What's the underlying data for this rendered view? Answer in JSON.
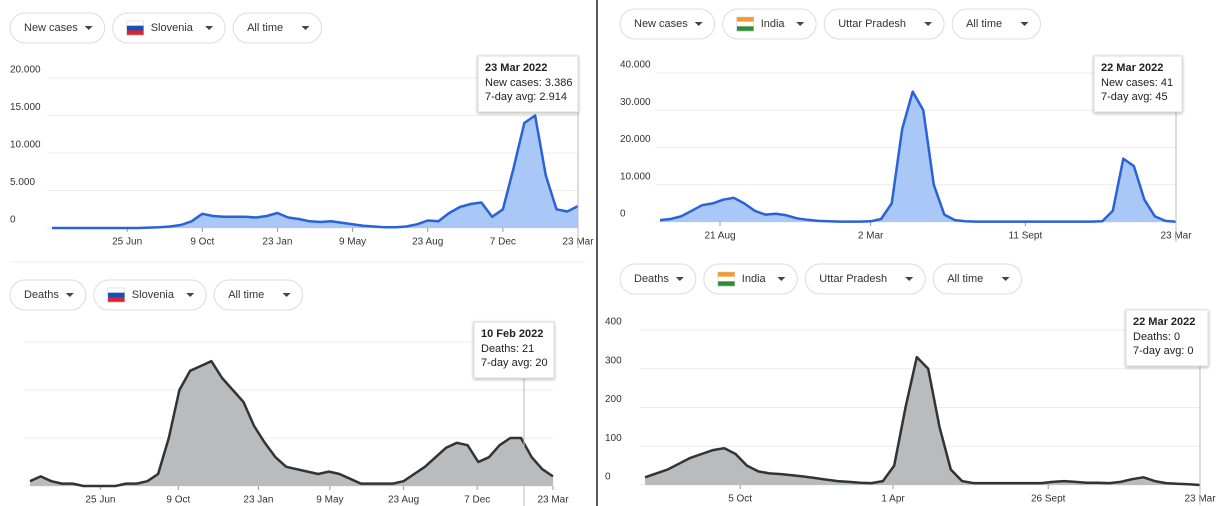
{
  "chart_data": [
    {
      "type": "area",
      "controls": [
        "New cases",
        "Slovenia",
        "All time"
      ],
      "tooltip": {
        "title": "23 Mar 2022",
        "lines": [
          "New cases: 3.386",
          "7-day avg: 2.914"
        ]
      },
      "color": "#2a62d8",
      "fill": "#a9c7f7",
      "xlim": [
        0,
        49
      ],
      "xticks": [
        {
          "value": 7,
          "label": "25 Jun"
        },
        {
          "value": 14,
          "label": "9 Oct"
        },
        {
          "value": 21,
          "label": "23 Jan"
        },
        {
          "value": 28,
          "label": "9 May"
        },
        {
          "value": 35,
          "label": "23 Aug"
        },
        {
          "value": 42,
          "label": "7 Dec"
        },
        {
          "value": 49,
          "label": "23 Mar"
        }
      ],
      "ylim": [
        0,
        20000
      ],
      "yticks": [
        0,
        {
          "value": 5000,
          "label": "5.000"
        },
        {
          "value": 10000,
          "label": "10.000"
        },
        {
          "value": 15000,
          "label": "15.000"
        },
        {
          "value": 20000,
          "label": "20.000"
        }
      ],
      "values": [
        0,
        0,
        0,
        0,
        0,
        0,
        0,
        0,
        0,
        50,
        100,
        200,
        400,
        900,
        1900,
        1600,
        1500,
        1500,
        1500,
        1400,
        1600,
        2000,
        1400,
        1200,
        900,
        800,
        900,
        700,
        500,
        300,
        200,
        100,
        100,
        200,
        500,
        1000,
        900,
        2000,
        2800,
        3200,
        3400,
        1500,
        2500,
        8000,
        14000,
        15000,
        7000,
        2500,
        2200,
        2914
      ]
    },
    {
      "type": "area",
      "controls": [
        "New cases",
        "India",
        "Uttar Pradesh",
        "All time"
      ],
      "tooltip": {
        "title": "22 Mar 2022",
        "lines": [
          "New cases: 41",
          "7-day avg: 45"
        ]
      },
      "color": "#2a62d8",
      "fill": "#a9c7f7",
      "xlim": [
        0,
        49
      ],
      "xticks": [
        {
          "value": 5.7,
          "label": "21 Aug"
        },
        {
          "value": 20,
          "label": "2 Mar"
        },
        {
          "value": 34.7,
          "label": "11 Sept"
        },
        {
          "value": 49,
          "label": "23 Mar"
        }
      ],
      "ylim": [
        0,
        40000
      ],
      "yticks": [
        0,
        {
          "value": 10000,
          "label": "10.000"
        },
        {
          "value": 20000,
          "label": "20.000"
        },
        {
          "value": 30000,
          "label": "30.000"
        },
        {
          "value": 40000,
          "label": "40.000"
        }
      ],
      "values": [
        500,
        800,
        1500,
        3000,
        4500,
        5000,
        6000,
        6500,
        5000,
        3000,
        2000,
        2200,
        1800,
        1000,
        600,
        300,
        200,
        100,
        100,
        100,
        200,
        800,
        5000,
        25000,
        35000,
        30000,
        10000,
        2000,
        500,
        200,
        100,
        100,
        100,
        100,
        100,
        100,
        100,
        100,
        100,
        100,
        100,
        100,
        200,
        3000,
        17000,
        15000,
        6000,
        1500,
        300,
        45
      ]
    },
    {
      "type": "area",
      "controls": [
        "Deaths",
        "Slovenia",
        "All time"
      ],
      "tooltip": {
        "title": "10 Feb 2022",
        "lines": [
          "Deaths: 21",
          "7-day avg: 20"
        ]
      },
      "color": "#333333",
      "fill": "#b9bcbf",
      "xlim": [
        0,
        49
      ],
      "xticks": [
        {
          "value": 6.6,
          "label": "25 Jun"
        },
        {
          "value": 13.9,
          "label": "9 Oct"
        },
        {
          "value": 21.4,
          "label": "23 Jan"
        },
        {
          "value": 28.1,
          "label": "9 May"
        },
        {
          "value": 35,
          "label": "23 Aug"
        },
        {
          "value": 41.9,
          "label": "7 Dec"
        },
        {
          "value": 49,
          "label": "23 Mar"
        }
      ],
      "ylim": [
        0,
        60
      ],
      "yticks": [
        0,
        20,
        40,
        60
      ],
      "values": [
        2,
        4,
        2,
        1,
        1,
        0,
        0,
        0,
        0,
        1,
        1,
        2,
        5,
        20,
        40,
        48,
        50,
        52,
        45,
        40,
        35,
        25,
        18,
        12,
        8,
        7,
        6,
        5,
        6,
        5,
        3,
        1,
        1,
        1,
        1,
        2,
        5,
        8,
        12,
        16,
        18,
        17,
        10,
        12,
        17,
        20,
        20,
        12,
        7,
        4
      ]
    },
    {
      "type": "area",
      "controls": [
        "Deaths",
        "India",
        "Uttar Pradesh",
        "All time"
      ],
      "tooltip": {
        "title": "22 Mar 2022",
        "lines": [
          "Deaths: 0",
          "7-day avg: 0"
        ]
      },
      "color": "#333333",
      "fill": "#b9bcbf",
      "xlim": [
        0,
        49
      ],
      "xticks": [
        {
          "value": 8.4,
          "label": "5 Oct"
        },
        {
          "value": 21.9,
          "label": "1 Apr"
        },
        {
          "value": 35.6,
          "label": "26 Sept"
        },
        {
          "value": 49,
          "label": "23 Mar"
        }
      ],
      "ylim": [
        0,
        400
      ],
      "yticks": [
        0,
        100,
        200,
        300,
        400
      ],
      "values": [
        20,
        30,
        40,
        55,
        70,
        80,
        90,
        95,
        80,
        50,
        35,
        30,
        28,
        25,
        22,
        18,
        14,
        10,
        8,
        6,
        5,
        10,
        50,
        200,
        330,
        300,
        150,
        40,
        10,
        5,
        5,
        5,
        5,
        5,
        5,
        5,
        8,
        10,
        8,
        6,
        6,
        5,
        8,
        15,
        20,
        10,
        5,
        3,
        2,
        0
      ]
    }
  ]
}
